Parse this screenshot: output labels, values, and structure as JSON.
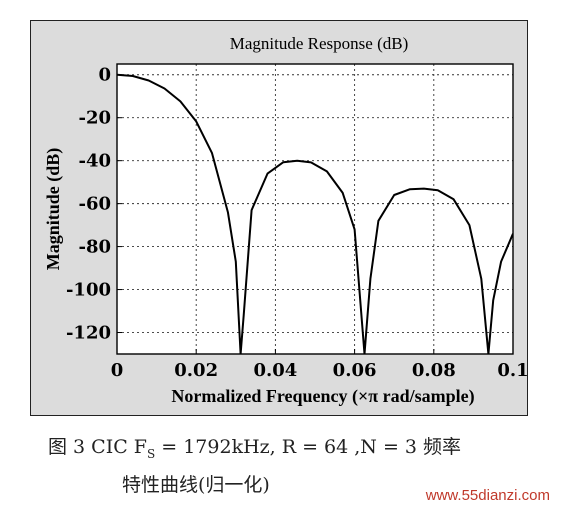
{
  "chart_data": {
    "type": "line",
    "title": "Magnitude Response (dB)",
    "xlabel": "Normalized Frequency (×π rad/sample)",
    "ylabel": "Magnitude (dB)",
    "xlim": [
      0,
      0.1
    ],
    "ylim": [
      -130,
      5
    ],
    "grid": true,
    "x_ticks": [
      "0",
      "0.02",
      "0.04",
      "0.06",
      "0.08",
      "0.1"
    ],
    "x_tick_values": [
      0,
      0.02,
      0.04,
      0.06,
      0.08,
      0.1
    ],
    "y_ticks": [
      "0",
      "-20",
      "-40",
      "-60",
      "-80",
      "-100",
      "-120"
    ],
    "y_tick_values": [
      0,
      -20,
      -40,
      -60,
      -80,
      -100,
      -120
    ],
    "series": [
      {
        "x": [
          0,
          0.004,
          0.008,
          0.012,
          0.016,
          0.02,
          0.024,
          0.028,
          0.03,
          0.0312,
          0.032,
          0.034,
          0.038,
          0.042,
          0.0455,
          0.049,
          0.053,
          0.057,
          0.06,
          0.0625,
          0.064,
          0.066,
          0.07,
          0.074,
          0.0775,
          0.081,
          0.085,
          0.089,
          0.092,
          0.0938,
          0.095,
          0.097,
          0.1
        ],
        "y": [
          0,
          -0.6,
          -2.7,
          -6.4,
          -12.4,
          -21.7,
          -36.5,
          -64,
          -87,
          -130,
          -112,
          -63,
          -46,
          -40.7,
          -40,
          -40.8,
          -45,
          -55,
          -72,
          -130,
          -95,
          -68,
          -56,
          -53.3,
          -53,
          -53.8,
          -58,
          -70,
          -95,
          -130,
          -105,
          -87,
          -74
        ]
      }
    ]
  },
  "caption": {
    "line1": "图 3   CIC F",
    "line1_sub": "S",
    "line1_rest": " = 1792kHz, R = 64  ,N = 3 频率",
    "line2": "特性曲线(归一化)"
  },
  "watermark": {
    "prefix": "www.",
    "accent": "55dianzi",
    "suffix": ".com",
    "color": "#c0392b"
  }
}
